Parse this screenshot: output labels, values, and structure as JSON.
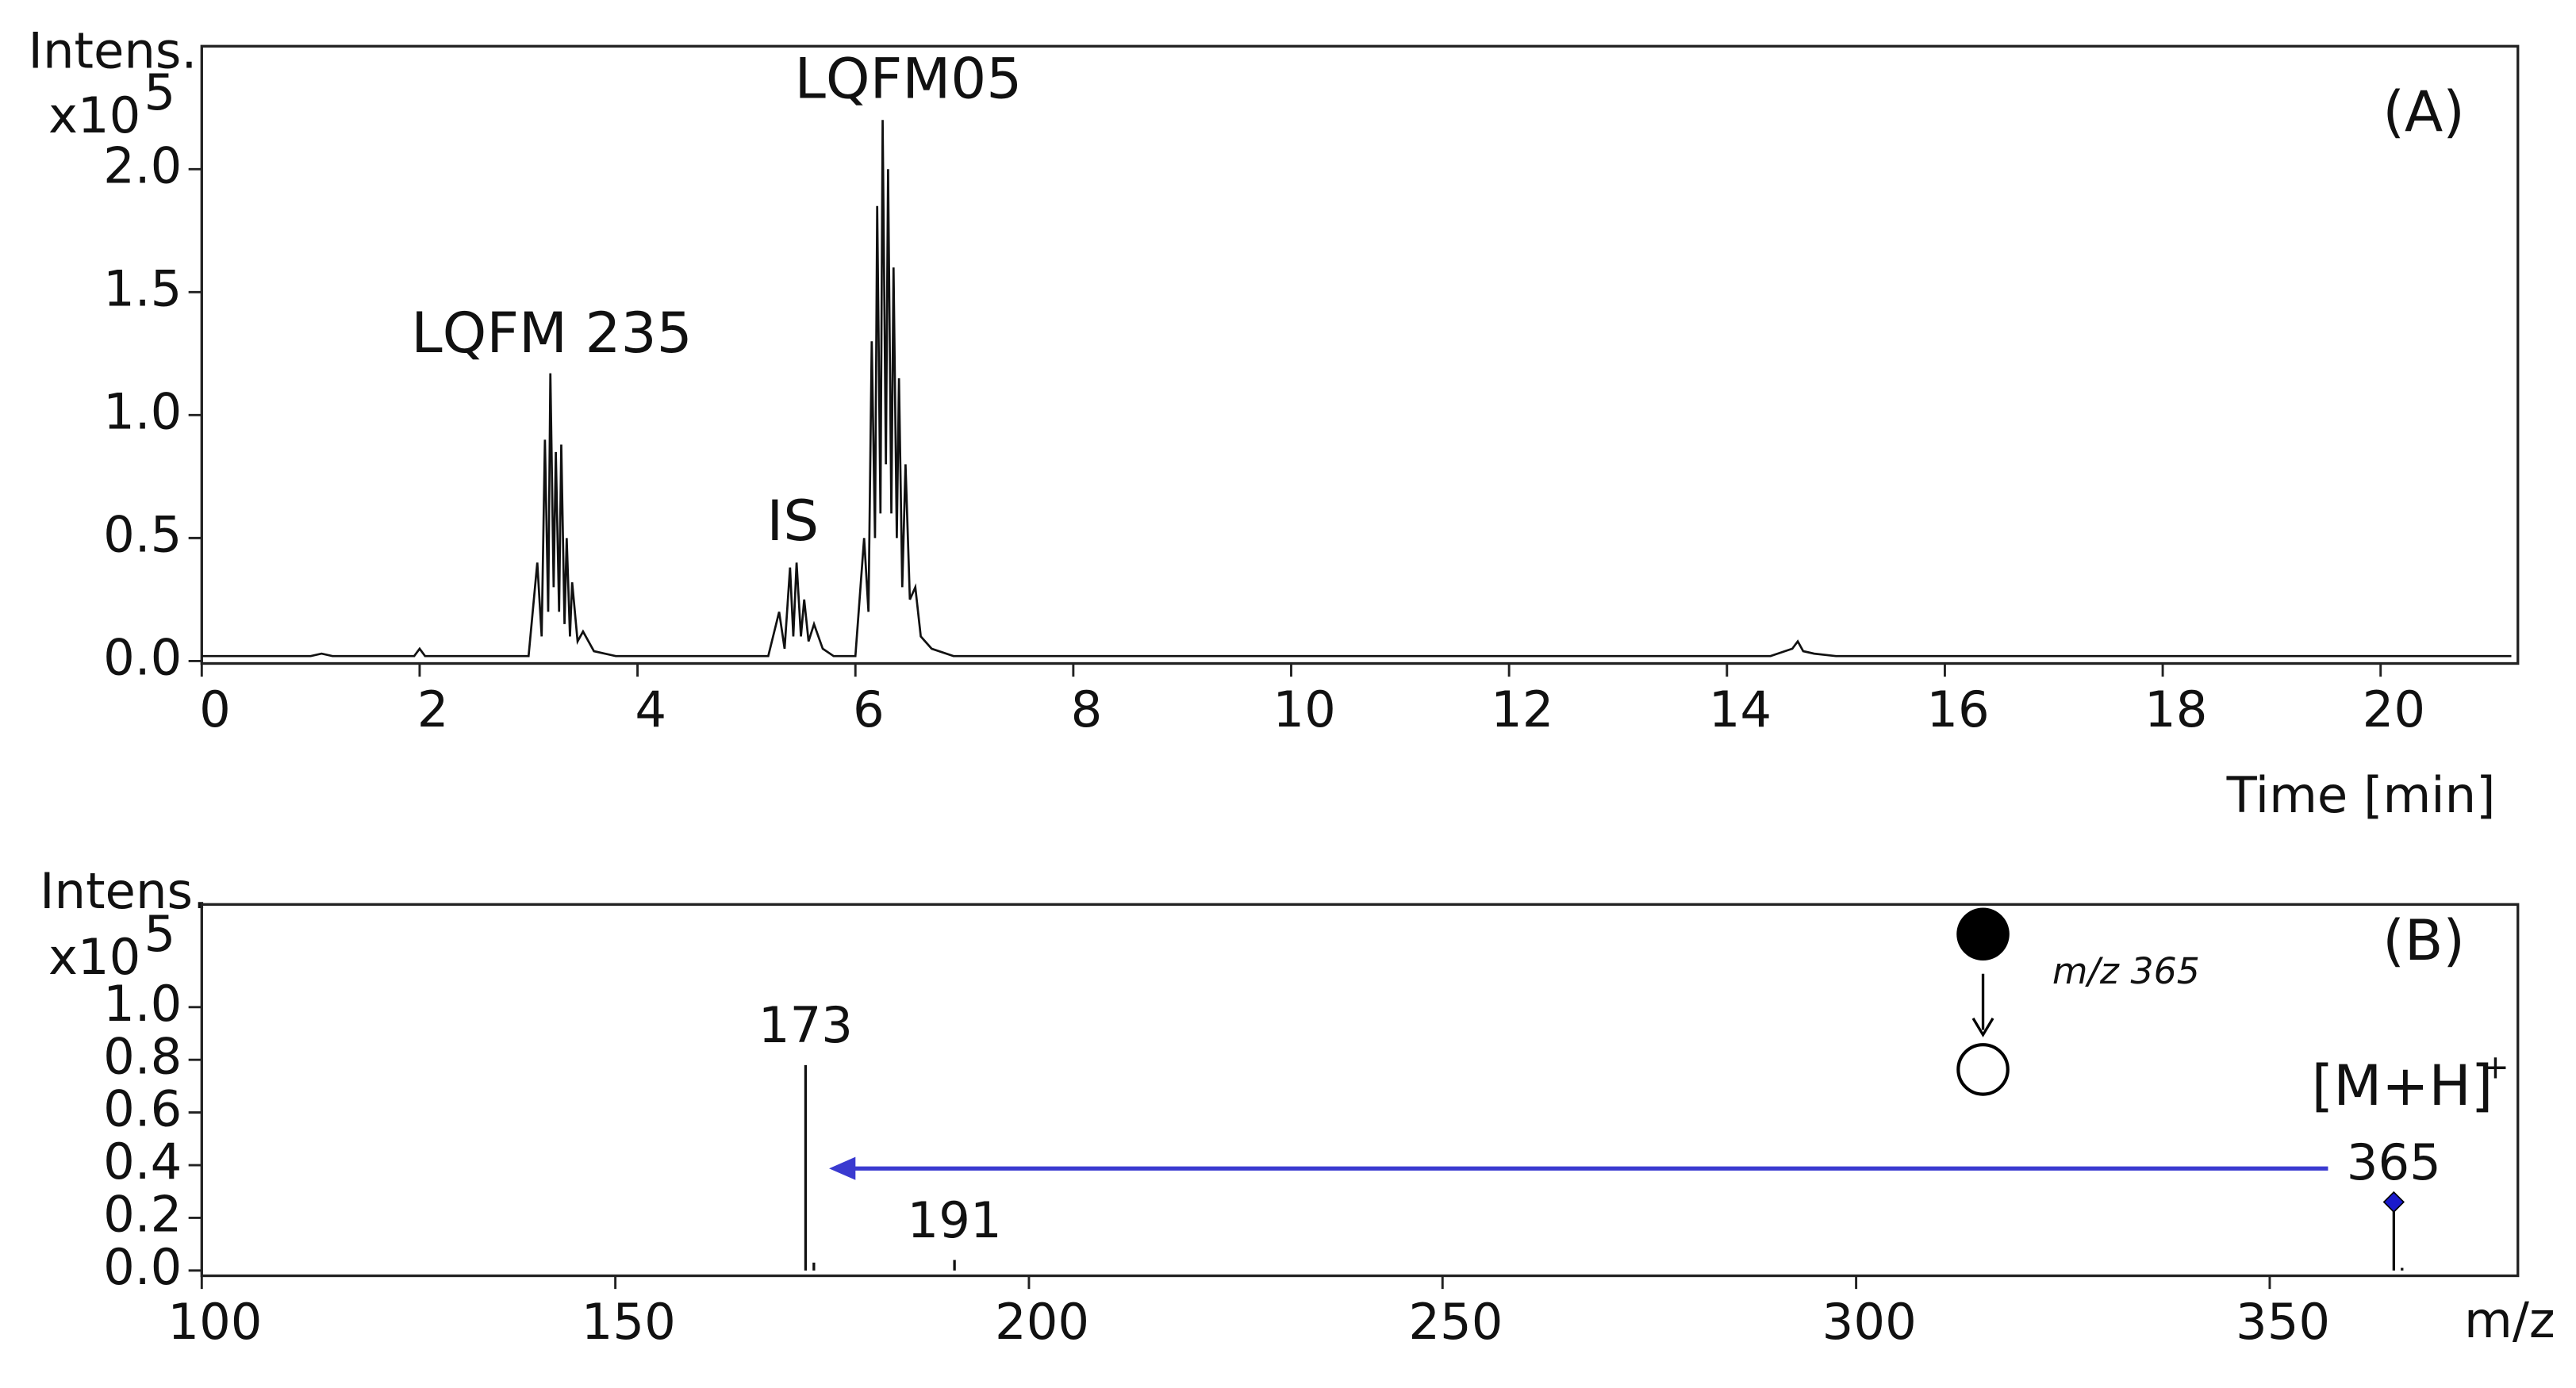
{
  "chart_data": [
    {
      "type": "line",
      "panel_label": "(A)",
      "y_label": "Intens.",
      "y_scale": {
        "base": "x10",
        "exponent": "5"
      },
      "x_label": "Time [min]",
      "color": "#111111",
      "annotations": [
        "LQFM 235",
        "IS",
        "LQFM05"
      ],
      "xlim": [
        0,
        21.26
      ],
      "xticks": [
        0,
        2,
        4,
        6,
        8,
        10,
        12,
        14,
        16,
        18,
        20
      ],
      "ylim": [
        -0.01,
        2.5
      ],
      "yticks": [
        {
          "value": 0,
          "label": "0.0"
        },
        {
          "value": 0.5,
          "label": "0.5"
        },
        {
          "value": 1,
          "label": "1.0"
        },
        {
          "value": 1.5,
          "label": "1.5"
        },
        {
          "value": 2,
          "label": "2.0"
        }
      ],
      "x": [
        0,
        1.0,
        1.1,
        1.2,
        1.95,
        2.0,
        2.05,
        2.1,
        3.0,
        3.08,
        3.12,
        3.15,
        3.18,
        3.2,
        3.23,
        3.25,
        3.28,
        3.3,
        3.33,
        3.35,
        3.38,
        3.4,
        3.45,
        3.5,
        3.6,
        3.8,
        5.2,
        5.3,
        5.35,
        5.4,
        5.43,
        5.46,
        5.5,
        5.53,
        5.57,
        5.62,
        5.7,
        5.8,
        6.0,
        6.08,
        6.12,
        6.15,
        6.18,
        6.2,
        6.23,
        6.25,
        6.28,
        6.3,
        6.33,
        6.35,
        6.38,
        6.4,
        6.43,
        6.46,
        6.5,
        6.55,
        6.6,
        6.7,
        6.9,
        14.4,
        14.6,
        14.65,
        14.7,
        14.8,
        15.0,
        21.2
      ],
      "values": [
        0.02,
        0.02,
        0.03,
        0.02,
        0.02,
        0.05,
        0.02,
        0.02,
        0.02,
        0.4,
        0.1,
        0.9,
        0.2,
        1.17,
        0.3,
        0.85,
        0.2,
        0.88,
        0.15,
        0.5,
        0.1,
        0.32,
        0.08,
        0.12,
        0.04,
        0.02,
        0.02,
        0.2,
        0.05,
        0.38,
        0.1,
        0.4,
        0.1,
        0.25,
        0.08,
        0.15,
        0.05,
        0.02,
        0.02,
        0.5,
        0.2,
        1.3,
        0.5,
        1.85,
        0.6,
        2.2,
        0.8,
        2.0,
        0.6,
        1.6,
        0.5,
        1.15,
        0.3,
        0.8,
        0.25,
        0.3,
        0.1,
        0.05,
        0.02,
        0.02,
        0.05,
        0.08,
        0.04,
        0.03,
        0.02,
        0.02
      ]
    },
    {
      "type": "bar",
      "panel_label": "(B)",
      "y_label": "Intens.",
      "y_scale": {
        "base": "x10",
        "exponent": "5"
      },
      "x_label": "m/z",
      "color": "#111111",
      "marker_color": "#1a1acc",
      "precursor": "m/z 365",
      "ion_label": {
        "base": "[M+H]",
        "charge": "+"
      },
      "xlim": [
        100,
        380
      ],
      "xticks": [
        100,
        150,
        200,
        250,
        300,
        350
      ],
      "ylim": [
        -0.02,
        1.39
      ],
      "yticks": [
        {
          "value": 0,
          "label": "0.0"
        },
        {
          "value": 0.2,
          "label": "0.2"
        },
        {
          "value": 0.4,
          "label": "0.4"
        },
        {
          "value": 0.6,
          "label": "0.6"
        },
        {
          "value": 0.8,
          "label": "0.8"
        },
        {
          "value": 1,
          "label": "1.0"
        }
      ],
      "x": [
        173,
        174,
        191,
        365,
        366
      ],
      "values": [
        0.78,
        0.03,
        0.04,
        0.26,
        0.01
      ],
      "labeled": [
        true,
        false,
        true,
        true,
        false
      ]
    }
  ]
}
